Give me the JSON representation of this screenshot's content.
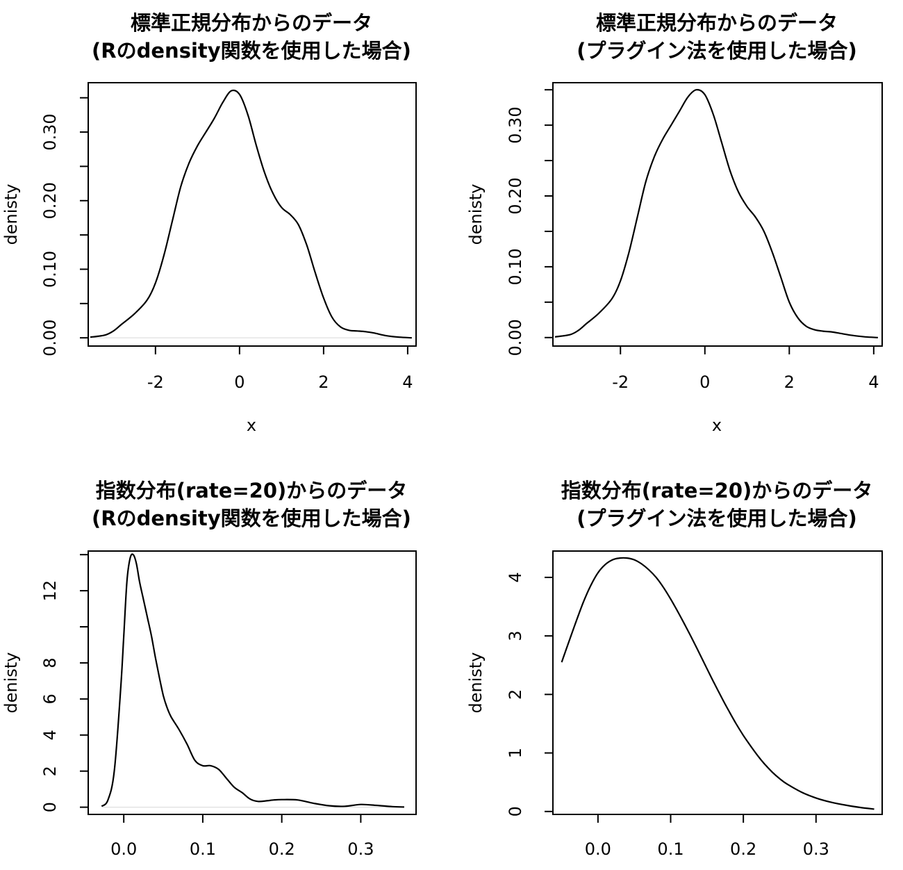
{
  "chart_data": [
    {
      "type": "line",
      "title": [
        "標準正規分布からのデータ",
        "(Rのdensity関数を使用した場合)"
      ],
      "xlabel": "x",
      "ylabel": "denisty",
      "xlim": [
        -3.6,
        4.2
      ],
      "ylim": [
        -0.012,
        0.372
      ],
      "xticks": [
        -2,
        0,
        2,
        4
      ],
      "xtick_labels": [
        "-2",
        "0",
        "2",
        "4"
      ],
      "yticks": [
        0,
        0.05,
        0.1,
        0.15,
        0.2,
        0.25,
        0.3,
        0.35
      ],
      "ytick_labels": [
        "0.00",
        "",
        "0.10",
        "",
        "0.20",
        "",
        "0.30",
        ""
      ],
      "zero_line": true,
      "series": [
        {
          "x": [
            -3.55,
            -3.2,
            -3.0,
            -2.8,
            -2.5,
            -2.2,
            -2.0,
            -1.8,
            -1.6,
            -1.4,
            -1.2,
            -1.0,
            -0.8,
            -0.6,
            -0.4,
            -0.2,
            0.0,
            0.2,
            0.4,
            0.6,
            0.8,
            1.0,
            1.2,
            1.4,
            1.6,
            1.8,
            2.0,
            2.2,
            2.4,
            2.6,
            2.8,
            3.0,
            3.2,
            3.5,
            3.8,
            4.1
          ],
          "y": [
            0.001,
            0.004,
            0.01,
            0.02,
            0.035,
            0.055,
            0.08,
            0.12,
            0.17,
            0.22,
            0.255,
            0.28,
            0.3,
            0.32,
            0.343,
            0.36,
            0.355,
            0.325,
            0.28,
            0.24,
            0.21,
            0.19,
            0.18,
            0.165,
            0.135,
            0.095,
            0.058,
            0.03,
            0.016,
            0.011,
            0.01,
            0.009,
            0.007,
            0.003,
            0.001,
            0.0
          ]
        }
      ]
    },
    {
      "type": "line",
      "title": [
        "標準正規分布からのデータ",
        "(プラグイン法を使用した場合)"
      ],
      "xlabel": "x",
      "ylabel": "denisty",
      "xlim": [
        -3.6,
        4.2
      ],
      "ylim": [
        -0.012,
        0.36
      ],
      "xticks": [
        -2,
        0,
        2,
        4
      ],
      "xtick_labels": [
        "-2",
        "0",
        "2",
        "4"
      ],
      "yticks": [
        0,
        0.05,
        0.1,
        0.15,
        0.2,
        0.25,
        0.3,
        0.35
      ],
      "ytick_labels": [
        "0.00",
        "",
        "0.10",
        "",
        "0.20",
        "",
        "0.30",
        ""
      ],
      "zero_line": false,
      "series": [
        {
          "x": [
            -3.55,
            -3.2,
            -3.0,
            -2.8,
            -2.5,
            -2.2,
            -2.0,
            -1.8,
            -1.6,
            -1.4,
            -1.2,
            -1.0,
            -0.8,
            -0.6,
            -0.4,
            -0.2,
            0.0,
            0.2,
            0.4,
            0.6,
            0.8,
            1.0,
            1.2,
            1.4,
            1.6,
            1.8,
            2.0,
            2.2,
            2.4,
            2.6,
            2.8,
            3.0,
            3.2,
            3.5,
            3.8,
            4.1
          ],
          "y": [
            0.001,
            0.004,
            0.01,
            0.02,
            0.035,
            0.055,
            0.08,
            0.12,
            0.17,
            0.22,
            0.255,
            0.28,
            0.3,
            0.32,
            0.34,
            0.35,
            0.343,
            0.315,
            0.275,
            0.235,
            0.205,
            0.185,
            0.17,
            0.15,
            0.12,
            0.085,
            0.05,
            0.028,
            0.016,
            0.011,
            0.009,
            0.008,
            0.006,
            0.003,
            0.001,
            0.0
          ]
        }
      ]
    },
    {
      "type": "line",
      "title": [
        "指数分布(rate=20)からのデータ",
        "(Rのdensity関数を使用した場合)"
      ],
      "xlabel": "",
      "ylabel": "denisty",
      "xlim": [
        -0.045,
        0.37
      ],
      "ylim": [
        -0.4,
        14.2
      ],
      "xticks": [
        0,
        0.1,
        0.2,
        0.3
      ],
      "xtick_labels": [
        "0.0",
        "0.1",
        "0.2",
        "0.3"
      ],
      "yticks": [
        0,
        2,
        4,
        6,
        8,
        10,
        12,
        14
      ],
      "ytick_labels": [
        "0",
        "2",
        "4",
        "6",
        "8",
        "",
        "12",
        ""
      ],
      "zero_line": true,
      "series": [
        {
          "x": [
            -0.028,
            -0.02,
            -0.012,
            -0.004,
            0.0,
            0.004,
            0.008,
            0.012,
            0.016,
            0.02,
            0.025,
            0.03,
            0.035,
            0.04,
            0.045,
            0.05,
            0.055,
            0.06,
            0.07,
            0.08,
            0.09,
            0.1,
            0.11,
            0.12,
            0.13,
            0.14,
            0.15,
            0.16,
            0.17,
            0.18,
            0.19,
            0.2,
            0.22,
            0.24,
            0.26,
            0.28,
            0.3,
            0.32,
            0.34,
            0.355
          ],
          "y": [
            0.05,
            0.4,
            2.0,
            6.5,
            9.5,
            12.5,
            13.8,
            14.0,
            13.5,
            12.5,
            11.5,
            10.5,
            9.5,
            8.3,
            7.2,
            6.2,
            5.5,
            5.0,
            4.3,
            3.5,
            2.6,
            2.3,
            2.3,
            2.1,
            1.6,
            1.1,
            0.8,
            0.45,
            0.32,
            0.35,
            0.4,
            0.42,
            0.4,
            0.22,
            0.08,
            0.05,
            0.15,
            0.1,
            0.03,
            0.01
          ]
        }
      ]
    },
    {
      "type": "line",
      "title": [
        "指数分布(rate=20)からのデータ",
        "(プラグイン法を使用した場合)"
      ],
      "xlabel": "",
      "ylabel": "denisty",
      "xlim": [
        -0.062,
        0.391
      ],
      "ylim": [
        -0.05,
        4.45
      ],
      "xticks": [
        0,
        0.1,
        0.2,
        0.3
      ],
      "xtick_labels": [
        "0.0",
        "0.1",
        "0.2",
        "0.3"
      ],
      "yticks": [
        0,
        1,
        2,
        3,
        4
      ],
      "ytick_labels": [
        "0",
        "1",
        "2",
        "3",
        "4"
      ],
      "zero_line": false,
      "series": [
        {
          "x": [
            -0.05,
            -0.04,
            -0.03,
            -0.02,
            -0.01,
            0.0,
            0.01,
            0.02,
            0.03,
            0.04,
            0.05,
            0.06,
            0.07,
            0.08,
            0.09,
            0.1,
            0.11,
            0.12,
            0.13,
            0.14,
            0.15,
            0.16,
            0.17,
            0.18,
            0.19,
            0.2,
            0.21,
            0.22,
            0.23,
            0.24,
            0.25,
            0.26,
            0.28,
            0.3,
            0.32,
            0.34,
            0.36,
            0.38
          ],
          "y": [
            2.55,
            2.9,
            3.25,
            3.58,
            3.86,
            4.08,
            4.22,
            4.3,
            4.33,
            4.33,
            4.3,
            4.23,
            4.13,
            4.0,
            3.83,
            3.63,
            3.41,
            3.18,
            2.94,
            2.69,
            2.44,
            2.19,
            1.95,
            1.72,
            1.5,
            1.3,
            1.12,
            0.95,
            0.8,
            0.67,
            0.56,
            0.47,
            0.33,
            0.23,
            0.16,
            0.11,
            0.07,
            0.04
          ]
        }
      ]
    }
  ]
}
